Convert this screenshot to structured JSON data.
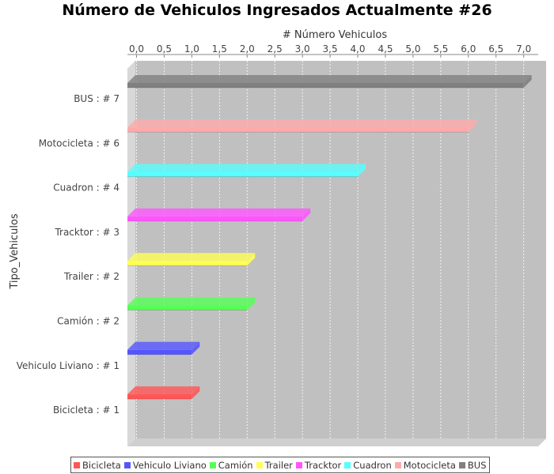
{
  "chart_data": {
    "type": "bar",
    "orientation": "horizontal",
    "title": "Número de Vehiculos Ingresados Actualmente  #26",
    "xlabel": "# Número Vehiculos",
    "ylabel": "Tipo_Vehiculos",
    "xlim": [
      0,
      7.2
    ],
    "x_ticks": [
      "0,0",
      "0,5",
      "1,0",
      "1,5",
      "2,0",
      "2,5",
      "3,0",
      "3,5",
      "4,0",
      "4,5",
      "5,0",
      "5,5",
      "6,0",
      "6,5",
      "7,0"
    ],
    "grid": true,
    "legend_position": "bottom-left",
    "categories": [
      {
        "label": "BUS : # 7",
        "value": 7,
        "series": "BUS"
      },
      {
        "label": "Motocicleta : # 6",
        "value": 6,
        "series": "Motocicleta"
      },
      {
        "label": "Cuadron : # 4",
        "value": 4,
        "series": "Cuadron"
      },
      {
        "label": "Tracktor : # 3",
        "value": 3,
        "series": "Tracktor"
      },
      {
        "label": "Trailer : # 2",
        "value": 2,
        "series": "Trailer"
      },
      {
        "label": "Camión : # 2",
        "value": 2,
        "series": "Camión"
      },
      {
        "label": "Vehiculo Liviano : # 1",
        "value": 1,
        "series": "Vehiculo Liviano"
      },
      {
        "label": "Bicicleta : # 1",
        "value": 1,
        "series": "Bicicleta"
      }
    ],
    "legend": [
      {
        "name": "Bicicleta",
        "color": "#ff5555"
      },
      {
        "name": "Vehiculo Liviano",
        "color": "#5555ff"
      },
      {
        "name": "Camión",
        "color": "#55ff55"
      },
      {
        "name": "Trailer",
        "color": "#ffff55"
      },
      {
        "name": "Tracktor",
        "color": "#ff55ff"
      },
      {
        "name": "Cuadron",
        "color": "#55ffff"
      },
      {
        "name": "Motocicleta",
        "color": "#ffaaaa"
      },
      {
        "name": "BUS",
        "color": "#808080"
      }
    ]
  }
}
